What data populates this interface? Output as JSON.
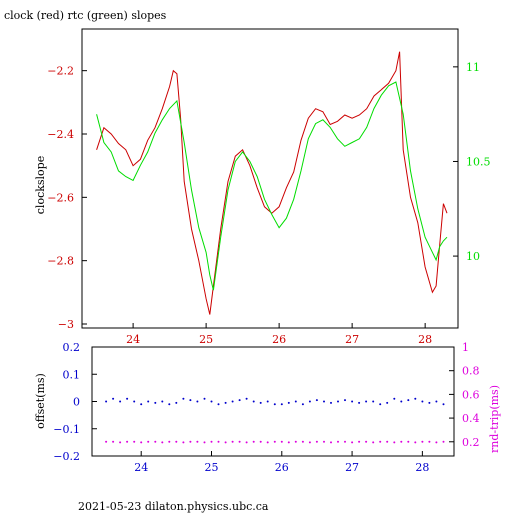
{
  "colors": {
    "red": "#cc0000",
    "green": "#00dd00",
    "blue": "#0000cc",
    "magenta": "#dd00dd",
    "axis": "#000000"
  },
  "footer_text": "2021-05-23 dilaton.physics.ubc.ca",
  "chart_data": [
    {
      "type": "line",
      "title": "clock (red) rtc (green) slopes",
      "ylabel_left": "clockslope",
      "x_ticks": [
        24,
        25,
        26,
        27,
        28
      ],
      "xlim": [
        23.3,
        28.45
      ],
      "ylim_left": [
        -3.0,
        -2.1
      ],
      "yticks_left": [
        -2.2,
        -2.4,
        -2.6,
        -2.8,
        -3
      ],
      "ylim_right": [
        9.62,
        11.2
      ],
      "yticks_right": [
        11,
        10.5,
        10
      ],
      "grid": false,
      "series": [
        {
          "name": "clock",
          "axis": "left",
          "x": [
            23.5,
            23.6,
            23.7,
            23.8,
            23.9,
            24.0,
            24.1,
            24.2,
            24.3,
            24.4,
            24.5,
            24.55,
            24.6,
            24.65,
            24.7,
            24.8,
            24.9,
            25.0,
            25.05,
            25.1,
            25.2,
            25.3,
            25.4,
            25.5,
            25.6,
            25.7,
            25.8,
            25.9,
            26.0,
            26.1,
            26.2,
            26.3,
            26.4,
            26.5,
            26.6,
            26.7,
            26.8,
            26.9,
            27.0,
            27.1,
            27.2,
            27.3,
            27.4,
            27.5,
            27.6,
            27.65,
            27.7,
            27.8,
            27.9,
            28.0,
            28.1,
            28.15,
            28.2,
            28.25,
            28.3
          ],
          "y": [
            -2.45,
            -2.38,
            -2.4,
            -2.43,
            -2.45,
            -2.5,
            -2.48,
            -2.42,
            -2.38,
            -2.32,
            -2.25,
            -2.2,
            -2.21,
            -2.35,
            -2.55,
            -2.7,
            -2.8,
            -2.92,
            -2.97,
            -2.88,
            -2.7,
            -2.55,
            -2.47,
            -2.45,
            -2.5,
            -2.57,
            -2.63,
            -2.65,
            -2.63,
            -2.57,
            -2.52,
            -2.42,
            -2.35,
            -2.32,
            -2.33,
            -2.37,
            -2.36,
            -2.34,
            -2.35,
            -2.34,
            -2.32,
            -2.28,
            -2.26,
            -2.24,
            -2.2,
            -2.14,
            -2.45,
            -2.6,
            -2.68,
            -2.82,
            -2.9,
            -2.88,
            -2.75,
            -2.62,
            -2.65
          ]
        },
        {
          "name": "rtc",
          "axis": "right",
          "x": [
            23.5,
            23.6,
            23.7,
            23.8,
            23.9,
            24.0,
            24.1,
            24.2,
            24.3,
            24.4,
            24.5,
            24.6,
            24.7,
            24.8,
            24.9,
            25.0,
            25.05,
            25.1,
            25.2,
            25.3,
            25.4,
            25.5,
            25.6,
            25.7,
            25.8,
            25.9,
            26.0,
            26.1,
            26.2,
            26.3,
            26.4,
            26.5,
            26.6,
            26.7,
            26.8,
            26.9,
            27.0,
            27.1,
            27.2,
            27.3,
            27.4,
            27.5,
            27.6,
            27.7,
            27.8,
            27.9,
            28.0,
            28.1,
            28.15,
            28.2,
            28.25,
            28.3
          ],
          "y": [
            10.75,
            10.6,
            10.55,
            10.45,
            10.42,
            10.4,
            10.48,
            10.55,
            10.65,
            10.72,
            10.78,
            10.82,
            10.6,
            10.35,
            10.15,
            10.02,
            9.9,
            9.82,
            10.1,
            10.35,
            10.5,
            10.55,
            10.5,
            10.42,
            10.3,
            10.22,
            10.15,
            10.2,
            10.3,
            10.45,
            10.62,
            10.7,
            10.72,
            10.68,
            10.62,
            10.58,
            10.6,
            10.62,
            10.68,
            10.78,
            10.85,
            10.9,
            10.92,
            10.75,
            10.45,
            10.25,
            10.1,
            10.02,
            9.98,
            10.05,
            10.08,
            10.1
          ]
        }
      ]
    },
    {
      "type": "scatter",
      "ylabel_left": "offset(ms)",
      "ylabel_right": "rnd-trip(ms)",
      "x_ticks": [
        24,
        25,
        26,
        27,
        28
      ],
      "xlim": [
        23.3,
        28.45
      ],
      "ylim_left": [
        -0.2,
        0.2
      ],
      "yticks_left": [
        0.2,
        0.1,
        0,
        -0.1,
        -0.2
      ],
      "ylim_right": [
        0.08,
        1.0
      ],
      "yticks_right": [
        1,
        0.8,
        0.6,
        0.4,
        0.2
      ],
      "grid": false,
      "series": [
        {
          "name": "offset",
          "axis": "left",
          "x": [
            23.5,
            23.6,
            23.7,
            23.8,
            23.9,
            24.0,
            24.1,
            24.2,
            24.3,
            24.4,
            24.5,
            24.6,
            24.7,
            24.8,
            24.9,
            25.0,
            25.1,
            25.2,
            25.3,
            25.4,
            25.5,
            25.6,
            25.7,
            25.8,
            25.9,
            26.0,
            26.1,
            26.2,
            26.3,
            26.4,
            26.5,
            26.6,
            26.7,
            26.8,
            26.9,
            27.0,
            27.1,
            27.2,
            27.3,
            27.4,
            27.5,
            27.6,
            27.7,
            27.8,
            27.9,
            28.0,
            28.1,
            28.2,
            28.3
          ],
          "y": [
            0.0,
            0.01,
            0.0,
            0.01,
            0.0,
            -0.01,
            0.0,
            -0.005,
            0.0,
            -0.01,
            -0.005,
            0.01,
            0.005,
            0.0,
            0.01,
            0.0,
            -0.01,
            -0.005,
            0.0,
            0.005,
            0.01,
            0.0,
            -0.005,
            0.0,
            -0.01,
            -0.01,
            -0.005,
            0.0,
            -0.01,
            0.0,
            0.005,
            0.0,
            -0.005,
            0.0,
            0.005,
            0.0,
            -0.005,
            0.0,
            0.0,
            -0.01,
            -0.005,
            0.01,
            0.0,
            0.005,
            0.01,
            0.0,
            -0.005,
            0.0,
            -0.01
          ]
        },
        {
          "name": "rnd-trip",
          "axis": "right",
          "x": [
            23.5,
            23.6,
            23.7,
            23.8,
            23.9,
            24.0,
            24.1,
            24.2,
            24.3,
            24.4,
            24.5,
            24.6,
            24.7,
            24.8,
            24.9,
            25.0,
            25.1,
            25.2,
            25.3,
            25.4,
            25.5,
            25.6,
            25.7,
            25.8,
            25.9,
            26.0,
            26.1,
            26.2,
            26.3,
            26.4,
            26.5,
            26.6,
            26.7,
            26.8,
            26.9,
            27.0,
            27.1,
            27.2,
            27.3,
            27.4,
            27.5,
            27.6,
            27.7,
            27.8,
            27.9,
            28.0,
            28.1,
            28.2,
            28.3
          ],
          "y": [
            0.2,
            0.2,
            0.195,
            0.2,
            0.2,
            0.195,
            0.2,
            0.2,
            0.195,
            0.2,
            0.2,
            0.195,
            0.2,
            0.2,
            0.195,
            0.2,
            0.2,
            0.195,
            0.2,
            0.2,
            0.195,
            0.2,
            0.2,
            0.195,
            0.2,
            0.2,
            0.195,
            0.2,
            0.2,
            0.195,
            0.2,
            0.2,
            0.195,
            0.2,
            0.2,
            0.195,
            0.2,
            0.2,
            0.195,
            0.2,
            0.2,
            0.195,
            0.2,
            0.2,
            0.195,
            0.2,
            0.2,
            0.195,
            0.2
          ]
        }
      ]
    }
  ]
}
